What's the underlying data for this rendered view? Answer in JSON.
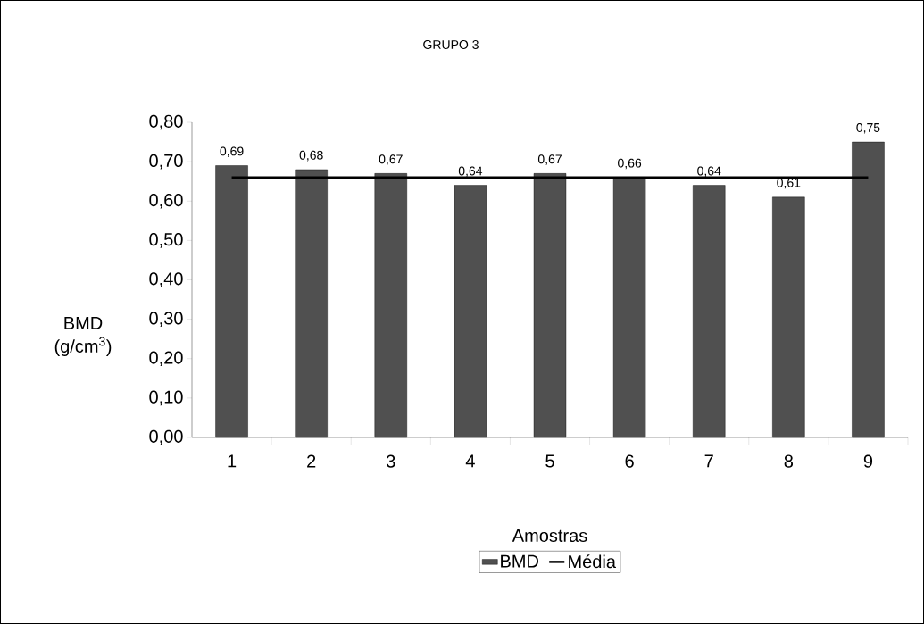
{
  "chart_data": {
    "type": "bar",
    "title": "GRUPO 3",
    "xlabel": "Amostras",
    "ylabel": "BMD (g/cm$^{3}$)",
    "categories": [
      "1",
      "2",
      "3",
      "4",
      "5",
      "6",
      "7",
      "8",
      "9"
    ],
    "series": [
      {
        "name": "BMD",
        "color": "#505050",
        "values": [
          0.69,
          0.68,
          0.67,
          0.64,
          0.67,
          0.66,
          0.64,
          0.61,
          0.75
        ],
        "value_labels": [
          "0,69",
          "0,68",
          "0,67",
          "0,64",
          "0,67",
          "0,66",
          "0,64",
          "0,61",
          "0,75"
        ]
      },
      {
        "name": "Média",
        "type": "line",
        "color": "#000000",
        "values": [
          0.66,
          0.66,
          0.66,
          0.66,
          0.66,
          0.66,
          0.66,
          0.66,
          0.66
        ]
      }
    ],
    "ylim": [
      0,
      0.8
    ],
    "yticks": [
      {
        "value": 0,
        "label": "0,00"
      },
      {
        "value": 0.1,
        "label": "0,10"
      },
      {
        "value": 0.2,
        "label": "0,20"
      },
      {
        "value": 0.3,
        "label": "0,30"
      },
      {
        "value": 0.4,
        "label": "0,40"
      },
      {
        "value": 0.5,
        "label": "0,50"
      },
      {
        "value": 0.6,
        "label": "0,60"
      },
      {
        "value": 0.7,
        "label": "0,70"
      },
      {
        "value": 0.8,
        "label": "0,80"
      }
    ],
    "grid": false,
    "legend": "bottom"
  }
}
